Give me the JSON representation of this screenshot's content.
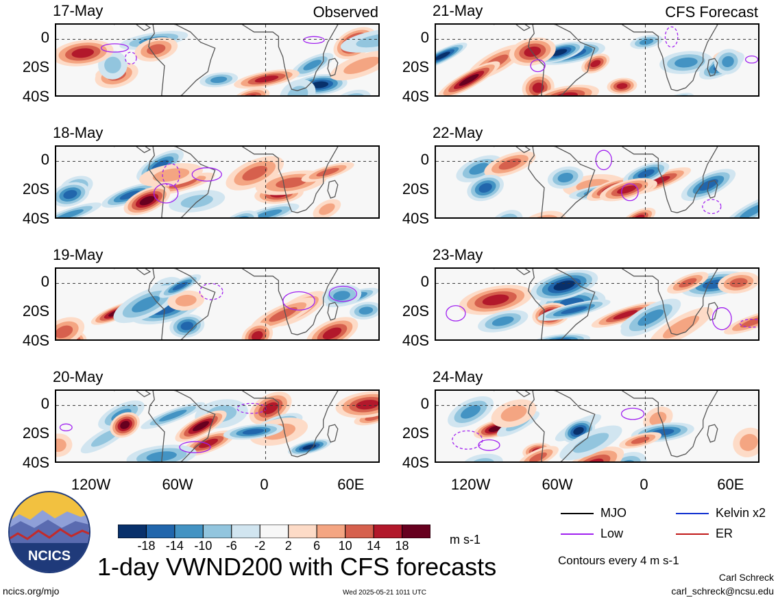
{
  "title": "1-day VWND200 with CFS forecasts",
  "logo": {
    "text": "NCICS",
    "colors": {
      "sky": "#f2c140",
      "mountains": "#5a6bb0",
      "ridge": "#c22b2b",
      "ring": "#1f3a7a"
    }
  },
  "site_url": "ncics.org/mjo",
  "timestamp": "Wed 2025-05-21 1011 UTC",
  "author": {
    "name": "Carl Schreck",
    "email": "carl_schreck@ncsu.edu"
  },
  "contour_note": "Contours every 4 m s-1",
  "units": "m s-1",
  "legend": [
    {
      "label": "MJO",
      "color": "#000000"
    },
    {
      "label": "Kelvin x2",
      "color": "#1030d0"
    },
    {
      "label": "Low",
      "color": "#a020f0"
    },
    {
      "label": "ER",
      "color": "#c01818"
    }
  ],
  "colorbar": {
    "colors": [
      "#08306b",
      "#2166ac",
      "#4393c3",
      "#92c5de",
      "#d1e5f0",
      "#f7f7f7",
      "#fddbc7",
      "#f4a582",
      "#d6604d",
      "#b2182b",
      "#67001f"
    ],
    "ticks": [
      "-18",
      "-14",
      "-10",
      "-6",
      "-2",
      "2",
      "6",
      "10",
      "14",
      "18"
    ]
  },
  "axes": {
    "lat_ticks": [
      "0",
      "20S",
      "40S"
    ],
    "lon_ticks": [
      "120W",
      "60W",
      "0",
      "60E"
    ]
  },
  "chart_data": [
    {
      "type": "heatmap",
      "date": "17-May",
      "tag": "Observed",
      "variable": "VWND200",
      "xlim": [
        -145,
        80
      ],
      "ylim": [
        -40,
        10
      ]
    },
    {
      "type": "heatmap",
      "date": "18-May",
      "tag": "",
      "variable": "VWND200",
      "xlim": [
        -145,
        80
      ],
      "ylim": [
        -40,
        10
      ]
    },
    {
      "type": "heatmap",
      "date": "19-May",
      "tag": "",
      "variable": "VWND200",
      "xlim": [
        -145,
        80
      ],
      "ylim": [
        -40,
        10
      ]
    },
    {
      "type": "heatmap",
      "date": "20-May",
      "tag": "",
      "variable": "VWND200",
      "xlim": [
        -145,
        80
      ],
      "ylim": [
        -40,
        10
      ]
    },
    {
      "type": "heatmap",
      "date": "21-May",
      "tag": "CFS Forecast",
      "variable": "VWND200",
      "xlim": [
        -145,
        80
      ],
      "ylim": [
        -40,
        10
      ]
    },
    {
      "type": "heatmap",
      "date": "22-May",
      "tag": "",
      "variable": "VWND200",
      "xlim": [
        -145,
        80
      ],
      "ylim": [
        -40,
        10
      ]
    },
    {
      "type": "heatmap",
      "date": "23-May",
      "tag": "",
      "variable": "VWND200",
      "xlim": [
        -145,
        80
      ],
      "ylim": [
        -40,
        10
      ]
    },
    {
      "type": "heatmap",
      "date": "24-May",
      "tag": "",
      "variable": "VWND200",
      "xlim": [
        -145,
        80
      ],
      "ylim": [
        -40,
        10
      ]
    }
  ]
}
